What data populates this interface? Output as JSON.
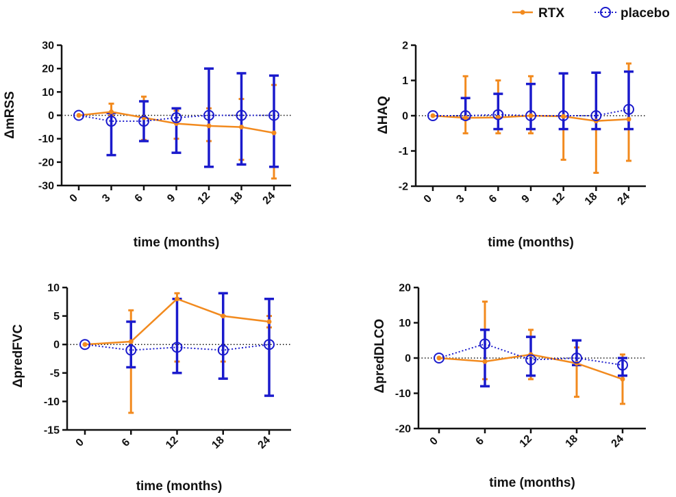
{
  "legend": {
    "rtx_label": "RTX",
    "placebo_label": "placebo"
  },
  "colors": {
    "rtx": "#f28a1e",
    "placebo": "#1a1acc",
    "axis": "#111111"
  },
  "chart_data": [
    {
      "type": "line",
      "ylabel": "ΔmRSS",
      "xlabel": "time (months)",
      "categories": [
        "0",
        "3",
        "6",
        "9",
        "12",
        "18",
        "24"
      ],
      "ylim": [
        -30,
        30
      ],
      "yticks": [
        30,
        20,
        10,
        0,
        -10,
        -20,
        -30
      ],
      "reference_line_y": 0,
      "series": [
        {
          "name": "RTX",
          "values": [
            0,
            1.5,
            -1,
            -3.5,
            -4.5,
            -5,
            -7.5
          ],
          "err_low": [
            0,
            0,
            -10.5,
            -10,
            -11,
            -19,
            -27
          ],
          "err_high": [
            0,
            5,
            8,
            2,
            3,
            7,
            13
          ]
        },
        {
          "name": "placebo",
          "values": [
            0,
            -2.5,
            -2.5,
            -1,
            0,
            0,
            0
          ],
          "err_low": [
            0,
            -17,
            -11,
            -16,
            -22,
            -21,
            -22
          ],
          "err_high": [
            0,
            1,
            6,
            3,
            20,
            18,
            17
          ]
        }
      ]
    },
    {
      "type": "line",
      "ylabel": "ΔHAQ",
      "xlabel": "time (months)",
      "categories": [
        "0",
        "3",
        "6",
        "9",
        "12",
        "18",
        "24"
      ],
      "ylim": [
        -2,
        2
      ],
      "yticks": [
        2,
        1,
        0,
        -1,
        -2
      ],
      "reference_line_y": 0,
      "series": [
        {
          "name": "RTX",
          "values": [
            0,
            -0.06,
            -0.05,
            0,
            -0.02,
            -0.15,
            -0.1
          ],
          "err_low": [
            0,
            -0.5,
            -0.5,
            -0.5,
            -1.25,
            -1.62,
            -1.28
          ],
          "err_high": [
            0,
            1.12,
            1.0,
            1.12,
            1.2,
            1.22,
            1.48
          ]
        },
        {
          "name": "placebo",
          "values": [
            0,
            0,
            0.03,
            0,
            0,
            0,
            0.18
          ],
          "err_low": [
            0,
            -0.08,
            -0.38,
            -0.38,
            -0.38,
            -0.38,
            -0.38
          ],
          "err_high": [
            0,
            0.5,
            0.62,
            0.9,
            1.2,
            1.22,
            1.25
          ]
        }
      ]
    },
    {
      "type": "line",
      "ylabel": "ΔpredFVC",
      "xlabel": "time (months)",
      "categories": [
        "0",
        "6",
        "12",
        "18",
        "24"
      ],
      "ylim": [
        -15,
        10
      ],
      "yticks": [
        10,
        5,
        0,
        -5,
        -10,
        -15
      ],
      "reference_line_y": 0,
      "series": [
        {
          "name": "RTX",
          "values": [
            0,
            0.5,
            8,
            5,
            4
          ],
          "err_low": [
            0,
            -12,
            -3,
            -3,
            3
          ],
          "err_high": [
            0,
            6,
            9,
            5,
            5
          ]
        },
        {
          "name": "placebo",
          "values": [
            0,
            -1,
            -0.5,
            -1,
            0
          ],
          "err_low": [
            0,
            -4,
            -5,
            -6,
            -9
          ],
          "err_high": [
            0,
            4,
            8,
            9,
            8
          ]
        }
      ]
    },
    {
      "type": "line",
      "ylabel": "ΔpredDLCO",
      "xlabel": "time (months)",
      "categories": [
        "0",
        "6",
        "12",
        "18",
        "24"
      ],
      "ylim": [
        -20,
        20
      ],
      "yticks": [
        20,
        10,
        0,
        -10,
        -20
      ],
      "reference_line_y": 0,
      "series": [
        {
          "name": "RTX",
          "values": [
            0,
            -1,
            1,
            -1.5,
            -6
          ],
          "err_low": [
            0,
            -6,
            -6,
            -11,
            -13
          ],
          "err_high": [
            0,
            16,
            8,
            3,
            1
          ]
        },
        {
          "name": "placebo",
          "values": [
            0,
            4,
            -0.5,
            0,
            -2
          ],
          "err_low": [
            0,
            -8,
            -5,
            -2,
            -5
          ],
          "err_high": [
            0,
            8,
            6,
            5,
            0
          ]
        }
      ]
    }
  ]
}
